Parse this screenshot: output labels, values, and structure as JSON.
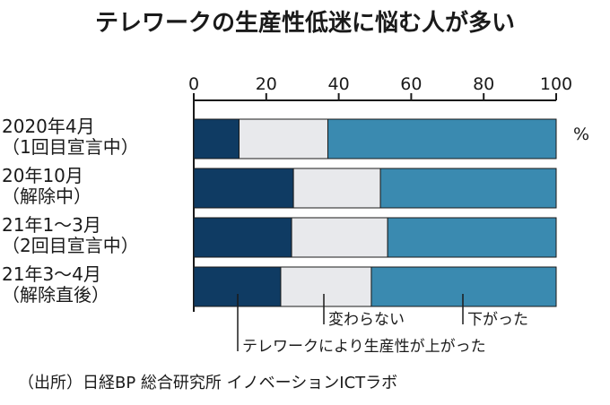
{
  "chart_data": {
    "type": "bar",
    "orientation": "horizontal",
    "stacked": true,
    "title": "テレワークの生産性低迷に悩む人が多い",
    "unit_label": "%",
    "xlim": [
      0,
      100
    ],
    "x_ticks": [
      "0",
      "20",
      "40",
      "60",
      "80",
      "100"
    ],
    "categories": [
      [
        "2020年4月",
        "（1回目宣言中）"
      ],
      [
        "20年10月",
        "（解除中）"
      ],
      [
        "21年1～3月",
        "（2回目宣言中）"
      ],
      [
        "21年3～4月",
        "（解除直後）"
      ]
    ],
    "series": [
      {
        "name": "テレワークにより生産性が上がった",
        "values": [
          12.5,
          27.5,
          27.0,
          24.0
        ],
        "color": "#0f3b63"
      },
      {
        "name": "変わらない",
        "values": [
          24.5,
          24.0,
          26.5,
          25.0
        ],
        "color": "#e8e9ec"
      },
      {
        "name": "下がった",
        "values": [
          63.0,
          48.5,
          46.5,
          51.0
        ],
        "color": "#3a8ab0"
      }
    ],
    "source": "（出所）日経BP 総合研究所 イノベーションICTラボ",
    "grid": false
  }
}
